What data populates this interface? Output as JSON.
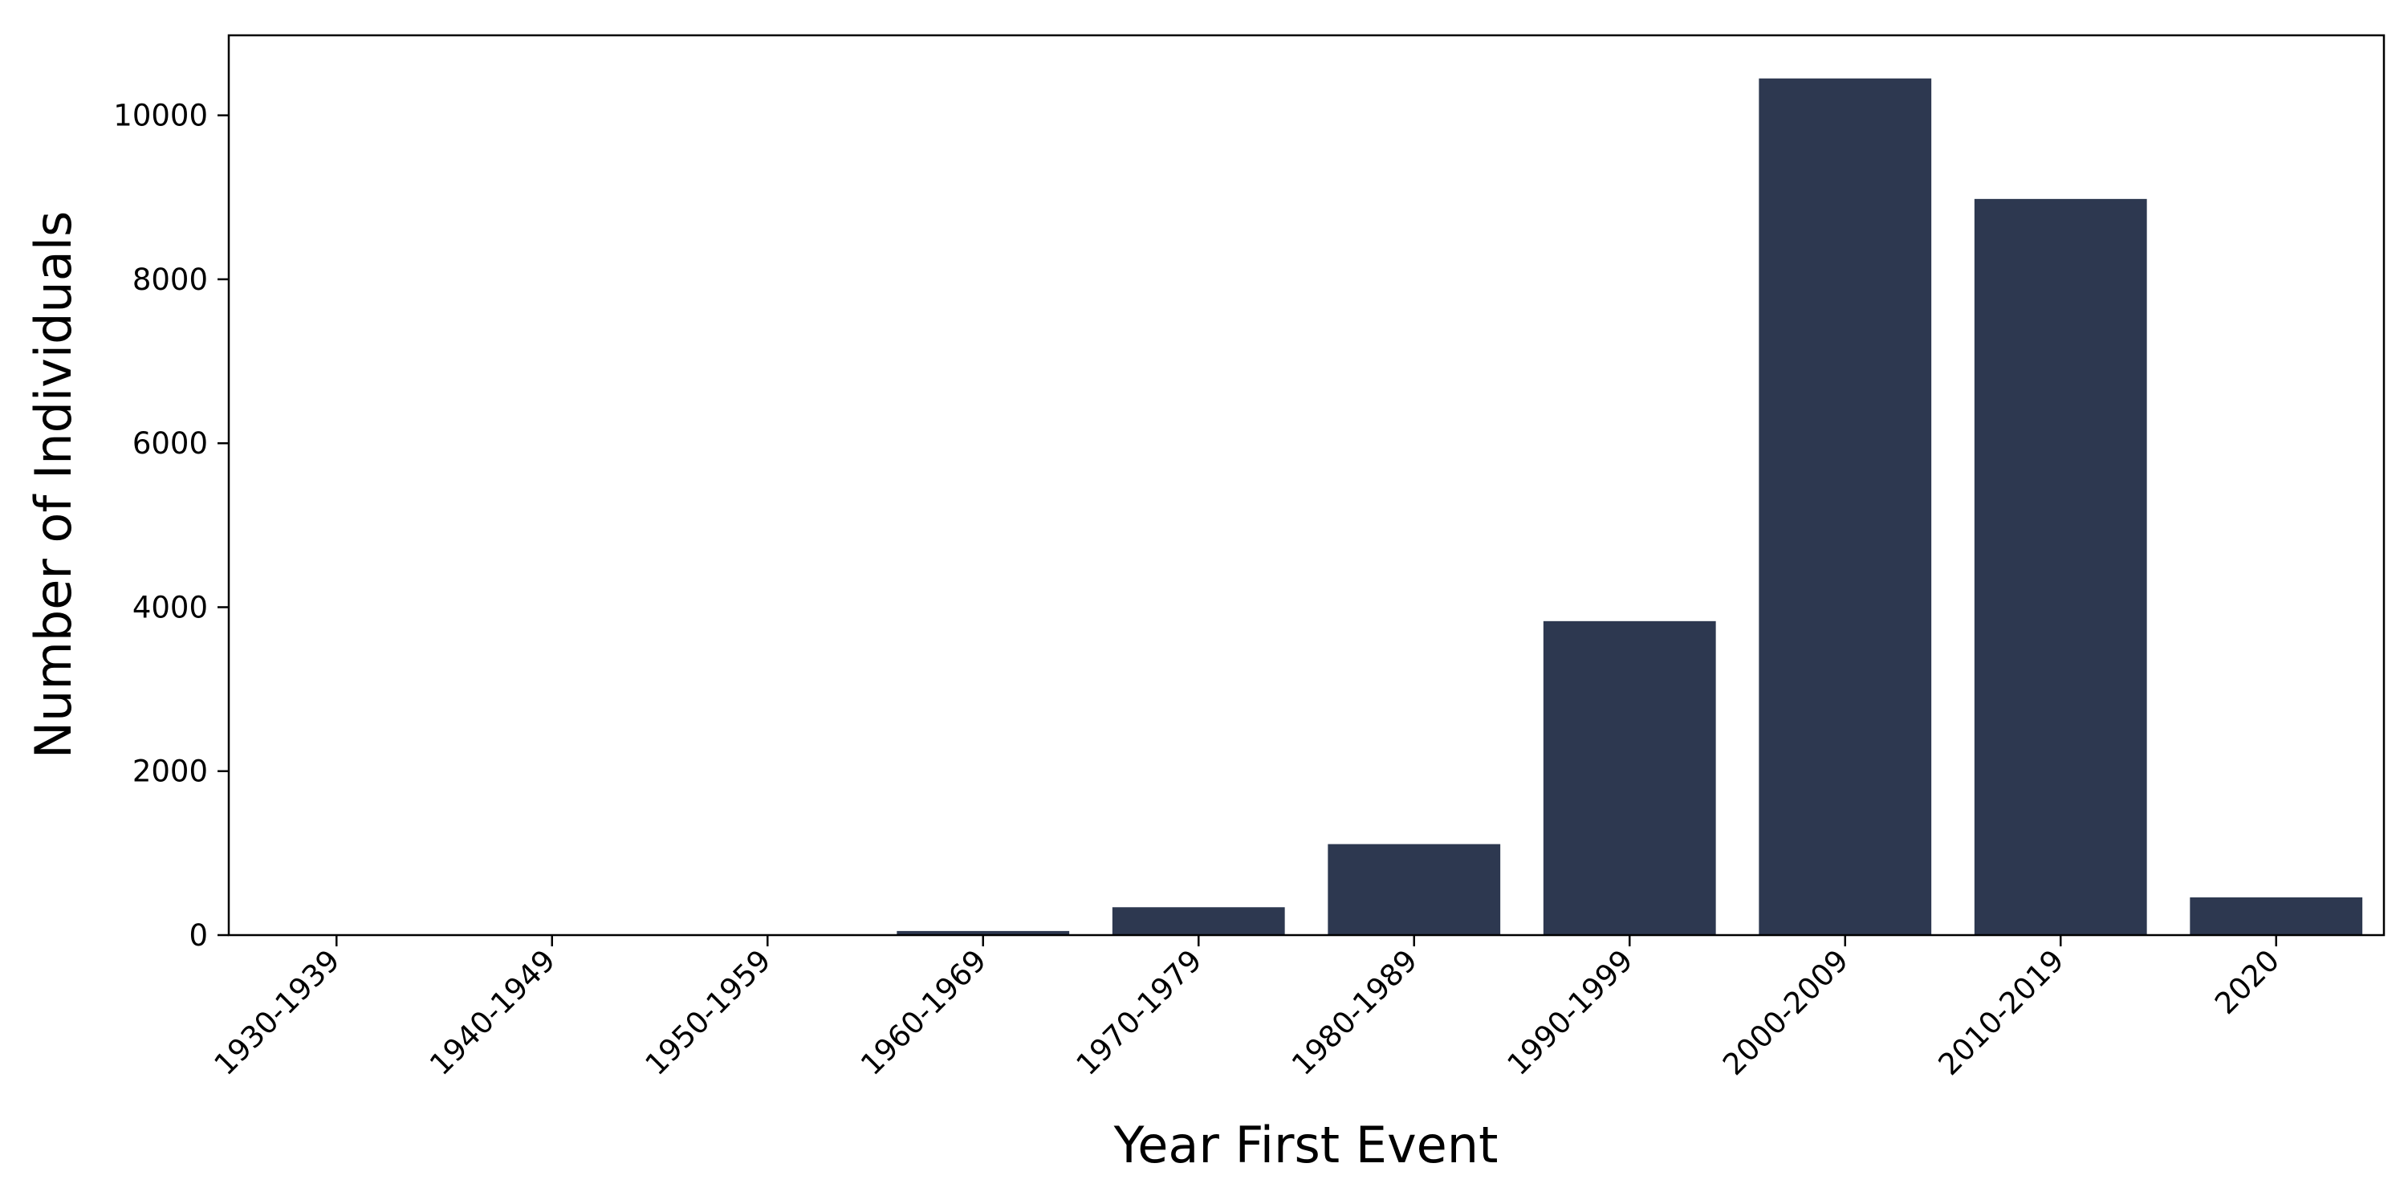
{
  "chart_data": {
    "type": "bar",
    "title": "",
    "xlabel": "Year First Event",
    "ylabel": "Number of Individuals",
    "categories": [
      "1930-1939",
      "1940-1949",
      "1950-1959",
      "1960-1969",
      "1970-1979",
      "1980-1989",
      "1990-1999",
      "2000-2009",
      "2010-2019",
      "2020"
    ],
    "values": [
      3,
      5,
      10,
      50,
      340,
      1110,
      3830,
      10450,
      8980,
      460
    ],
    "ylim": [
      0,
      10976
    ],
    "yticks": [
      0,
      2000,
      4000,
      6000,
      8000,
      10000
    ],
    "grid": false,
    "legend": "none",
    "bar_color": "#2d3850"
  }
}
